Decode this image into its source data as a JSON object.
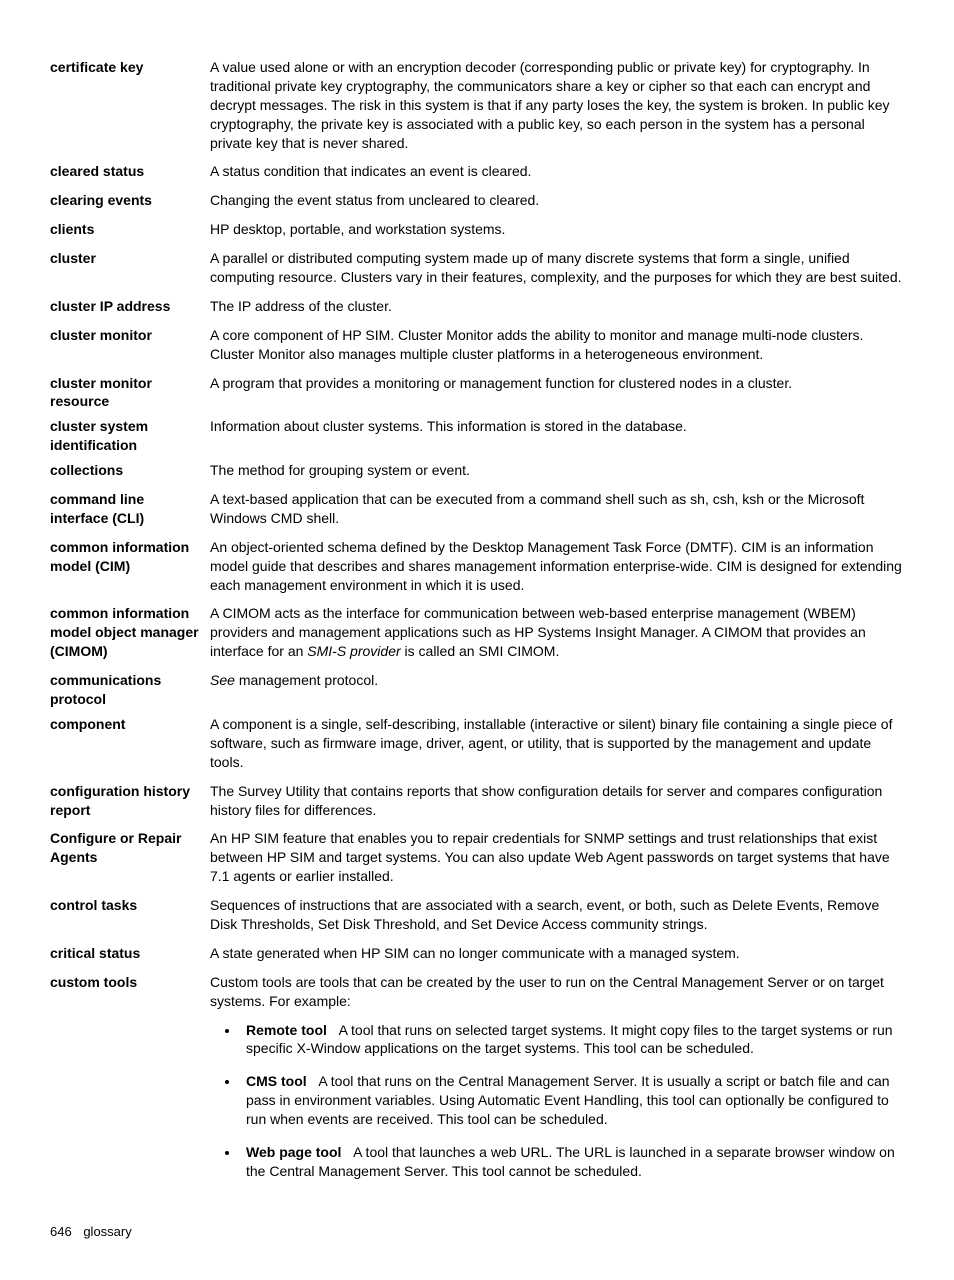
{
  "entries": [
    {
      "term": "certificate key",
      "def": "A value used alone or with an encryption decoder (corresponding public or private key) for cryptography. In traditional private key cryptography, the communicators share a key or cipher so that each can encrypt and decrypt messages. The risk in this system is that if any party loses the key, the system is broken. In public key cryptography, the private key is associated with a public key, so each person in the system has a personal private key that is never shared."
    },
    {
      "term": "cleared status",
      "def": "A status condition that indicates an event is cleared."
    },
    {
      "term": "clearing events",
      "def": "Changing the event status from uncleared to cleared."
    },
    {
      "term": "clients",
      "def": "HP desktop, portable, and workstation systems."
    },
    {
      "term": "cluster",
      "def": "A parallel or distributed computing system made up of many discrete systems that form a single, unified computing resource. Clusters vary in their features, complexity, and the purposes for which they are best suited."
    },
    {
      "term": "cluster IP address",
      "def": "The IP address of the cluster."
    },
    {
      "term": "cluster monitor",
      "def": "A core component of HP SIM. Cluster Monitor adds the ability to monitor and manage multi-node clusters. Cluster Monitor also manages multiple cluster platforms in a heterogeneous environment."
    },
    {
      "term": "cluster monitor resource",
      "def": "A program that provides a monitoring or management function for clustered nodes in a cluster."
    },
    {
      "term": "cluster system identification",
      "def": "Information about cluster systems. This information is stored in the database."
    },
    {
      "term": "collections",
      "def": "The method for grouping system or event."
    },
    {
      "term": "command line interface (CLI)",
      "def": "A text-based application that can be executed from a command shell such as sh, csh, ksh or the Microsoft Windows CMD shell."
    },
    {
      "term": "common information model (CIM)",
      "def": "An object-oriented schema defined by the Desktop Management Task Force (DMTF). CIM is an information model guide that describes and shares management information enterprise-wide. CIM is designed for extending each management environment in which it is used."
    },
    {
      "term": "common information model object manager (CIMOM)",
      "def_pre": "A CIMOM acts as the interface for communication between web-based enterprise management (WBEM) providers and management applications such as HP Systems Insight Manager. A CIMOM that provides an interface for an ",
      "def_link": "SMI-S provider",
      "def_post": " is called an SMI CIMOM."
    },
    {
      "term": "communications protocol",
      "see": "See",
      "see_target": "management protocol."
    },
    {
      "term": "component",
      "def": "A component is a single, self-describing, installable (interactive or silent) binary file containing a single piece of software, such as firmware image, driver, agent, or utility, that is supported by the management and update tools."
    },
    {
      "term": "configuration history report",
      "def": "The Survey Utility that contains reports that show configuration details for server and compares configuration history files for differences."
    },
    {
      "term": "Configure or Repair Agents",
      "def": "An HP SIM feature that enables you to repair credentials for SNMP settings and trust relationships that exist between HP SIM and target systems. You can also update Web Agent passwords on target systems that have 7.1 agents or earlier installed."
    },
    {
      "term": "control tasks",
      "def": "Sequences of instructions that are associated with a search, event, or both, such as Delete Events, Remove Disk Thresholds, Set Disk Threshold, and Set Device Access community strings."
    },
    {
      "term": "critical status",
      "def": "A state generated when HP SIM can no longer communicate with a managed system."
    },
    {
      "term": "custom tools",
      "def": "Custom tools are tools that can be created by the user to run on the Central Management Server or on target systems. For example:",
      "bullets": [
        {
          "lead": "Remote tool",
          "text": "A tool that runs on selected target systems. It might copy files to the target systems or run specific X-Window applications on the target systems. This tool can be scheduled."
        },
        {
          "lead": "CMS tool",
          "text": "A tool that runs on the Central Management Server. It is usually a script or batch file and can pass in environment variables. Using Automatic Event Handling, this tool can optionally be configured to run when events are received. This tool can be scheduled."
        },
        {
          "lead": "Web page tool",
          "text": "A tool that launches a web URL. The URL is launched in a separate browser window on the Central Management Server. This tool cannot be scheduled."
        }
      ]
    }
  ],
  "footer": {
    "page": "646",
    "section": "glossary"
  }
}
